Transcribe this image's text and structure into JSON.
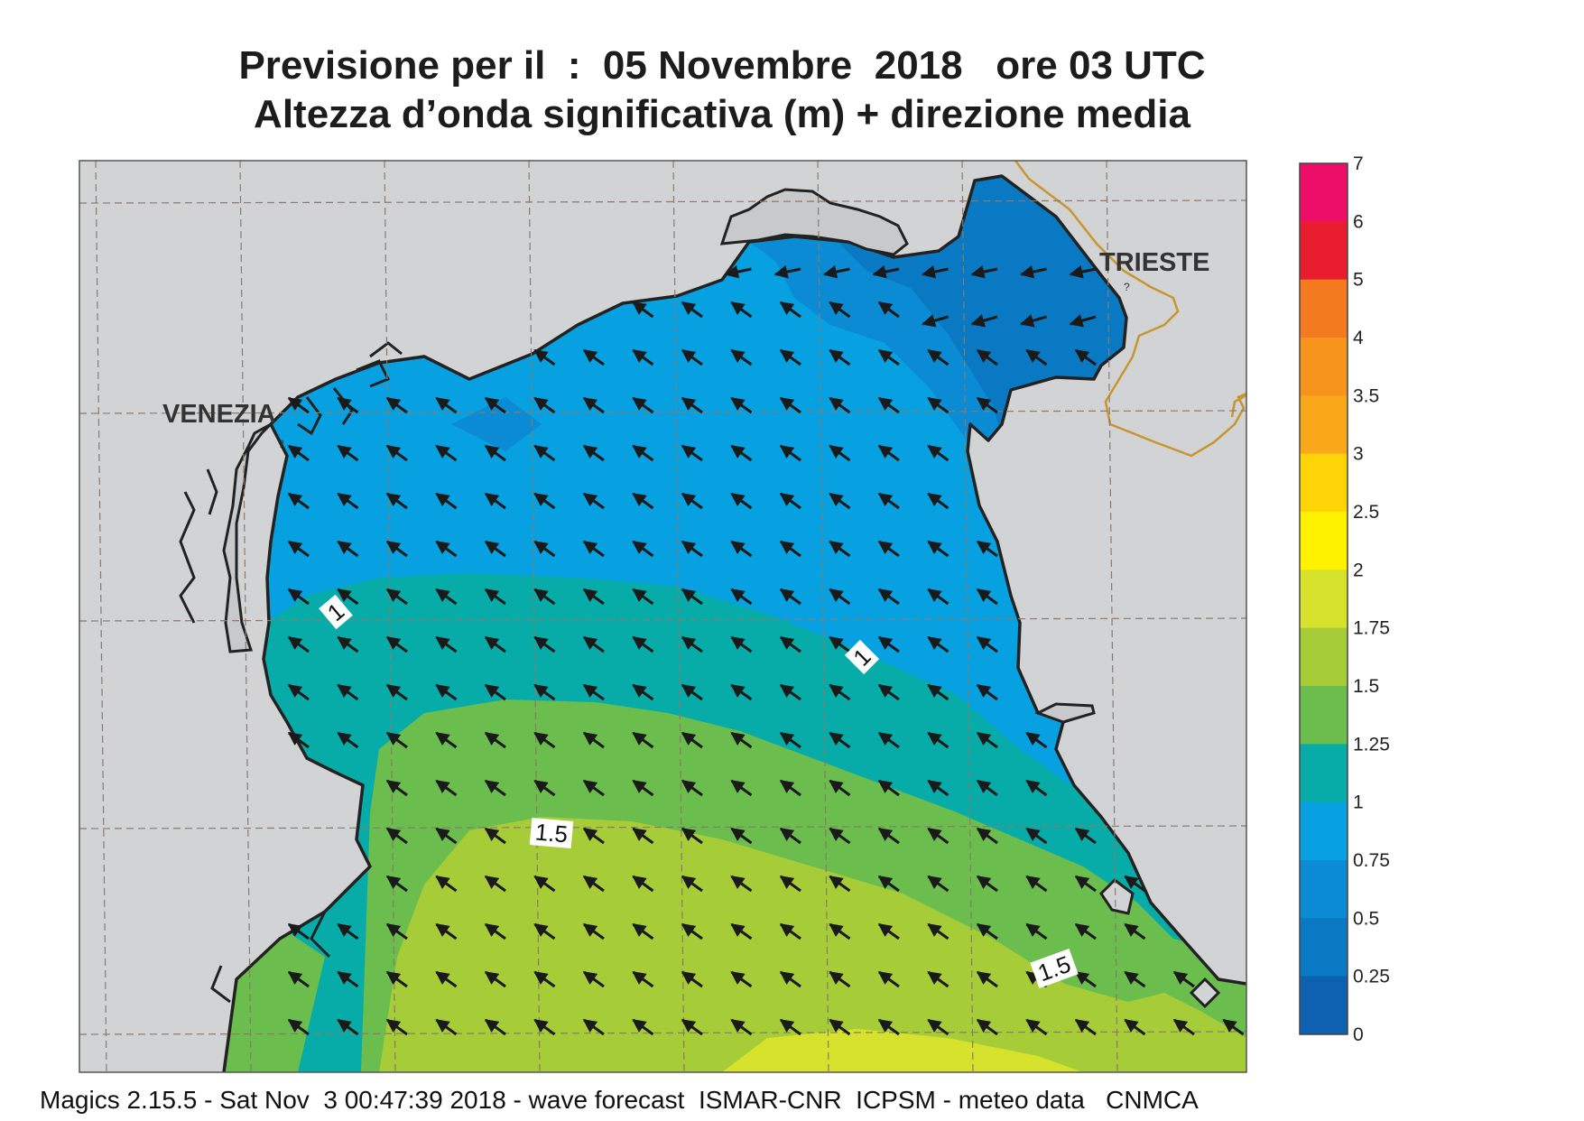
{
  "title": {
    "line1": "Previsione per il  :  05 Novembre  2018   ore 03 UTC",
    "line2": "Altezza d’onda significativa (m) + direzione media"
  },
  "map": {
    "labels": {
      "venezia": "VENEZIA",
      "trieste": "TRIESTE"
    },
    "contour_labels": [
      "1",
      "1",
      "1.5",
      "1.5"
    ],
    "arrow_direction": "north-west",
    "colors": {
      "land": "#d2d3d5",
      "sea_0_25_0_5": "#0a79c3",
      "sea_0_5_0_75": "#0a8bd3",
      "sea_0_75_1": "#07a0e0",
      "sea_1_1_25": "#07aca8",
      "sea_1_25_1_5": "#6bbd4d",
      "sea_1_5_1_75": "#a6cc38",
      "sea_1_75_2": "#d6e22b",
      "coastline": "#222222",
      "border": "#c8962f"
    }
  },
  "legend": {
    "labels": [
      "7",
      "6",
      "5",
      "4",
      "3.5",
      "3",
      "2.5",
      "2",
      "1.75",
      "1.5",
      "1.25",
      "1",
      "0.75",
      "0.5",
      "0.25",
      "0"
    ],
    "bands": [
      {
        "from": "6",
        "to": "7",
        "color": "#ed0f67"
      },
      {
        "from": "5",
        "to": "6",
        "color": "#e81d2e"
      },
      {
        "from": "4",
        "to": "5",
        "color": "#f47a20"
      },
      {
        "from": "3.5",
        "to": "4",
        "color": "#f7941d"
      },
      {
        "from": "3",
        "to": "3.5",
        "color": "#f9a81a"
      },
      {
        "from": "2.5",
        "to": "3",
        "color": "#fed307"
      },
      {
        "from": "2",
        "to": "2.5",
        "color": "#fef200"
      },
      {
        "from": "1.75",
        "to": "2",
        "color": "#d6e22b"
      },
      {
        "from": "1.5",
        "to": "1.75",
        "color": "#a6cc38"
      },
      {
        "from": "1.25",
        "to": "1.5",
        "color": "#6bbd4d"
      },
      {
        "from": "1",
        "to": "1.25",
        "color": "#07aca8"
      },
      {
        "from": "0.75",
        "to": "1",
        "color": "#07a0e0"
      },
      {
        "from": "0.5",
        "to": "0.75",
        "color": "#0a8bd3"
      },
      {
        "from": "0.25",
        "to": "0.5",
        "color": "#0a79c3"
      },
      {
        "from": "0",
        "to": "0.25",
        "color": "#0d61b0"
      }
    ]
  },
  "footer": "Magics 2.15.5 - Sat Nov  3 00:47:39 2018 - wave forecast  ISMAR-CNR  ICPSM - meteo data   CNMCA"
}
